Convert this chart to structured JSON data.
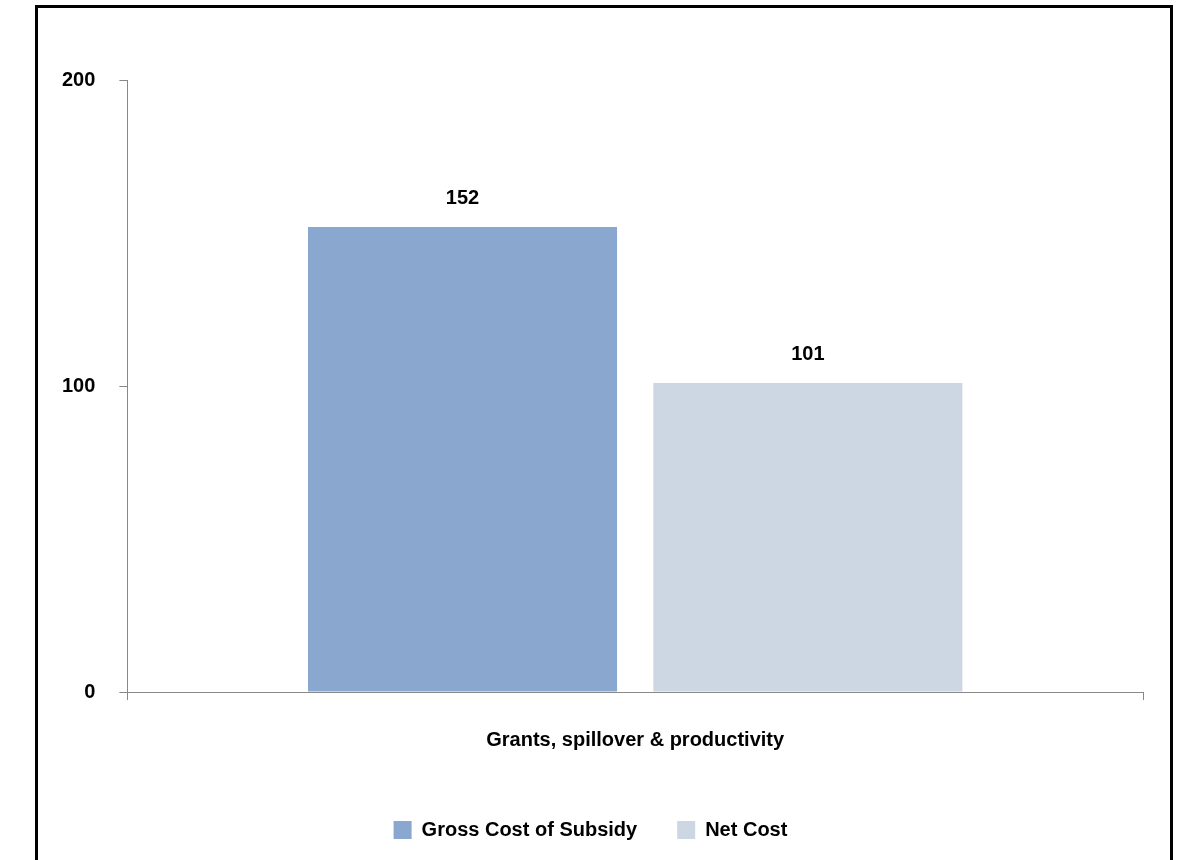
{
  "chart_data": {
    "type": "bar",
    "categories": [
      "Grants, spillover & productivity"
    ],
    "series": [
      {
        "name": "Gross Cost of Subsidy",
        "color": "#8aa8cf",
        "values": [
          152
        ]
      },
      {
        "name": "Net Cost",
        "color": "#cdd7e3",
        "values": [
          101
        ]
      }
    ],
    "ylim": [
      0,
      200
    ],
    "yticks": [
      0,
      100,
      200
    ],
    "grid": false,
    "legend": "bottom",
    "data_labels": true
  }
}
